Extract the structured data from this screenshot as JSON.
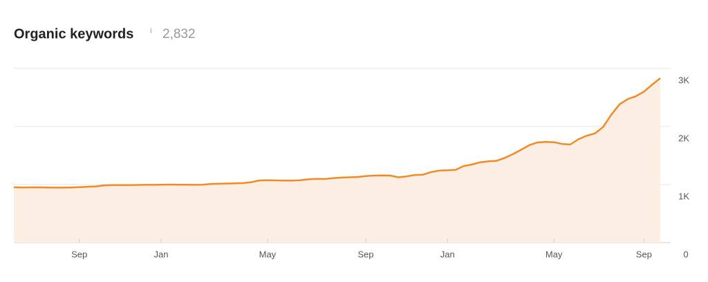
{
  "chart_data": {
    "type": "area",
    "title": "Organic keywords",
    "info_label": "i",
    "subtitle": "2,832",
    "color": "#f08a24",
    "fill_color": "#fdeee3",
    "grid": true,
    "y_axis_side": "right",
    "categories": [
      null,
      null,
      null,
      null,
      null,
      null,
      null,
      null,
      "Sep",
      null,
      null,
      null,
      null,
      null,
      null,
      null,
      null,
      null,
      "Jan",
      null,
      null,
      null,
      null,
      null,
      null,
      null,
      null,
      null,
      null,
      null,
      null,
      "May",
      null,
      null,
      null,
      null,
      null,
      null,
      null,
      null,
      null,
      null,
      null,
      "Sep",
      null,
      null,
      null,
      null,
      null,
      null,
      null,
      null,
      null,
      "Jan",
      null,
      null,
      null,
      null,
      null,
      null,
      null,
      null,
      null,
      null,
      null,
      null,
      "May",
      null,
      null,
      null,
      null,
      null,
      null,
      null,
      null,
      null,
      null,
      "Sep",
      null,
      null
    ],
    "values": [
      952,
      950,
      951,
      952,
      950,
      948,
      948,
      950,
      955,
      962,
      968,
      985,
      990,
      990,
      992,
      993,
      995,
      995,
      997,
      1000,
      998,
      996,
      995,
      998,
      1010,
      1015,
      1018,
      1020,
      1025,
      1040,
      1070,
      1075,
      1072,
      1068,
      1068,
      1075,
      1090,
      1098,
      1095,
      1110,
      1120,
      1125,
      1130,
      1145,
      1155,
      1158,
      1155,
      1125,
      1140,
      1165,
      1170,
      1215,
      1240,
      1245,
      1255,
      1320,
      1345,
      1385,
      1400,
      1410,
      1460,
      1525,
      1600,
      1680,
      1725,
      1735,
      1730,
      1700,
      1690,
      1780,
      1840,
      1880,
      1990,
      2200,
      2380,
      2470,
      2520,
      2600,
      2720,
      2832
    ],
    "ylim": [
      0,
      3000
    ],
    "yticks": [
      0,
      {
        "value": 1000,
        "label": "1K"
      },
      {
        "value": 2000,
        "label": "2K"
      },
      {
        "value": 3000,
        "label": "3K"
      }
    ]
  }
}
